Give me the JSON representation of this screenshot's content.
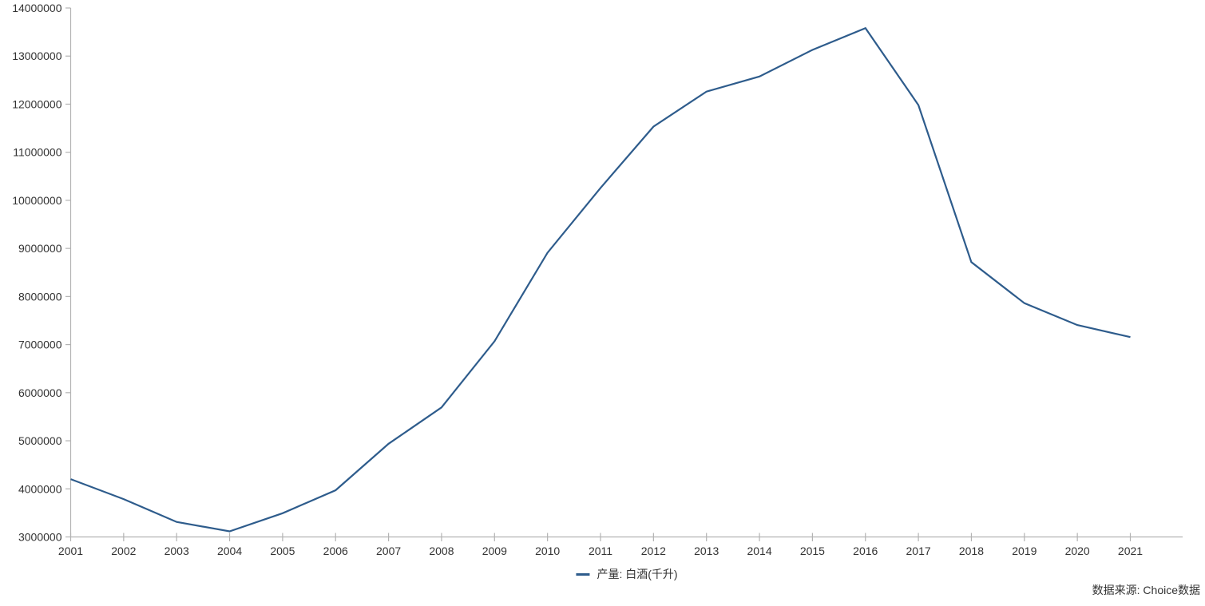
{
  "chart_data": {
    "type": "line",
    "title": "",
    "xlabel": "",
    "ylabel": "",
    "grid": false,
    "legend_position": "bottom-center",
    "categories": [
      "2001",
      "2002",
      "2003",
      "2004",
      "2005",
      "2006",
      "2007",
      "2008",
      "2009",
      "2010",
      "2011",
      "2012",
      "2013",
      "2014",
      "2015",
      "2016",
      "2017",
      "2018",
      "2019",
      "2020",
      "2021"
    ],
    "series": [
      {
        "name": "产量: 白酒(千升)",
        "color": "#2E5C8C",
        "values": [
          4202000,
          3787000,
          3312000,
          3117000,
          3493000,
          3971000,
          4937000,
          5693000,
          7069000,
          8909000,
          10257000,
          11532000,
          12262000,
          12575000,
          13128000,
          13581000,
          11981000,
          8715000,
          7862000,
          7407000,
          7156000
        ]
      }
    ],
    "ylim": [
      3000000,
      14000000
    ],
    "ytick_interval": 1000000,
    "y_ticks": [
      "3000000",
      "4000000",
      "5000000",
      "6000000",
      "7000000",
      "8000000",
      "9000000",
      "10000000",
      "11000000",
      "12000000",
      "13000000",
      "14000000"
    ]
  },
  "legend": {
    "label": "产量: 白酒(千升)"
  },
  "source": {
    "label": "数据来源: Choice数据"
  },
  "style": {
    "line_color": "#2E5C8C",
    "axis_color": "#B3B3B3",
    "text_color": "#333333",
    "background": "#FFFFFF"
  }
}
